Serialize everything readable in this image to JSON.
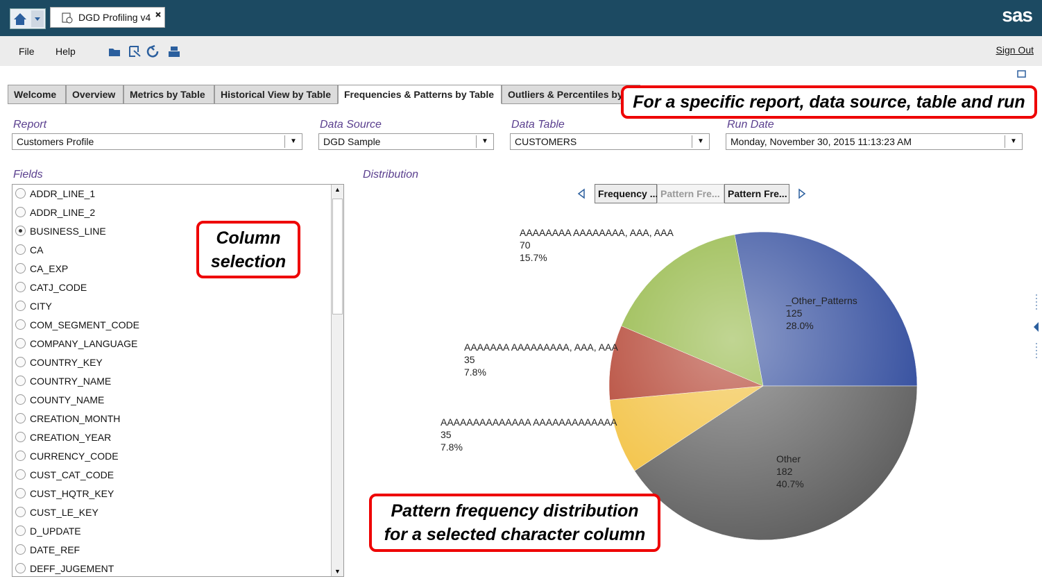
{
  "app_bar": {
    "tab": "DGD Profiling v4",
    "logo": "sas"
  },
  "menu": {
    "items": [
      "File",
      "Help"
    ],
    "sign_out": "Sign Out"
  },
  "tabs": {
    "items": [
      "Welcome",
      "Overview",
      "Metrics by Table",
      "Historical View by Table",
      "Frequencies & Patterns by Table",
      "Outliers & Percentiles by"
    ],
    "active": 4
  },
  "filters": [
    {
      "label": "Report",
      "value": "Customers Profile"
    },
    {
      "label": "Data Source",
      "value": "DGD Sample"
    },
    {
      "label": "Data Table",
      "value": "CUSTOMERS"
    },
    {
      "label": "Run Date",
      "value": "Monday, November 30, 2015 11:13:23 AM"
    }
  ],
  "fields": {
    "label": "Fields",
    "selected": 2,
    "items": [
      "ADDR_LINE_1",
      "ADDR_LINE_2",
      "BUSINESS_LINE",
      "CA",
      "CA_EXP",
      "CATJ_CODE",
      "CITY",
      "COM_SEGMENT_CODE",
      "COMPANY_LANGUAGE",
      "COUNTRY_KEY",
      "COUNTRY_NAME",
      "COUNTY_NAME",
      "CREATION_MONTH",
      "CREATION_YEAR",
      "CURRENCY_CODE",
      "CUST_CAT_CODE",
      "CUST_HQTR_KEY",
      "CUST_LE_KEY",
      "D_UPDATE",
      "DATE_REF",
      "DEFF_JUGEMENT"
    ]
  },
  "distribution": {
    "label": "Distribution",
    "views": [
      "Frequency ...",
      "Pattern Fre...",
      "Pattern Fre..."
    ],
    "active_view": 1
  },
  "chart_data": {
    "type": "pie",
    "categories": [
      "_Other_Patterns",
      "Other",
      "AAAAAAAAAAAAAA AAAAAAAAAAAAA",
      "AAAAAAA AAAAAAAAA, AAA, AAA",
      "AAAAAAAA AAAAAAAA, AAA, AAA"
    ],
    "values": [
      125,
      182,
      35,
      35,
      70
    ],
    "percent_labels": [
      "28.0%",
      "40.7%",
      "7.8%",
      "7.8%",
      "15.7%"
    ],
    "colors": [
      "#2f4a9c",
      "#5f5f5f",
      "#f2bf3a",
      "#b03a28",
      "#8db33a"
    ]
  },
  "callouts": [
    {
      "lines": [
        "For a specific report, data source, table and run"
      ]
    },
    {
      "lines": [
        "Column",
        "selection"
      ]
    },
    {
      "lines": [
        "Pattern frequency distribution",
        "for a selected character column"
      ]
    }
  ]
}
